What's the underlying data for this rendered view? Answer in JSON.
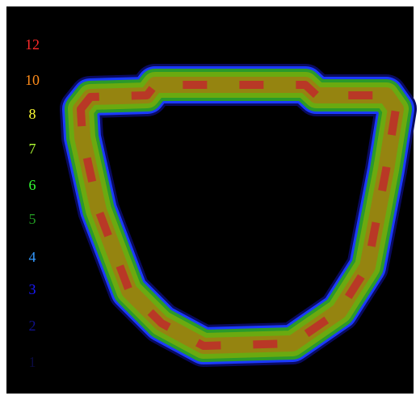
{
  "legend": [
    {
      "label": 12,
      "color": "#ff2a2a"
    },
    {
      "label": 10,
      "color": "#ff8c1a"
    },
    {
      "label": 8,
      "color": "#ffff33"
    },
    {
      "label": 7,
      "color": "#b2ff33"
    },
    {
      "label": 6,
      "color": "#33ff33"
    },
    {
      "label": 5,
      "color": "#229922"
    },
    {
      "label": 4,
      "color": "#3399ff"
    },
    {
      "label": 3,
      "color": "#1a1aff"
    },
    {
      "label": 2,
      "color": "#10108a"
    },
    {
      "label": 1,
      "color": "#0a0a40"
    }
  ]
}
